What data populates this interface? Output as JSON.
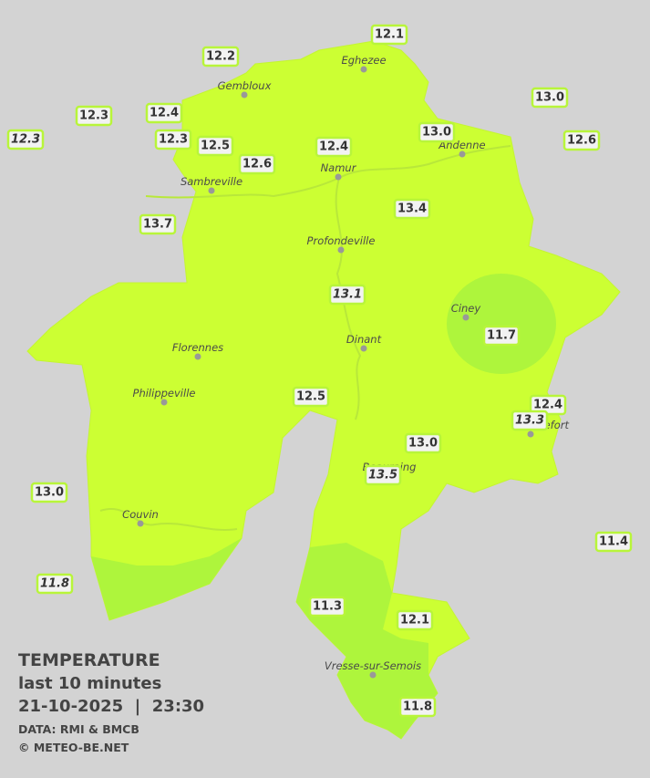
{
  "legend": {
    "title": "TEMPERATURE",
    "subtitle": "last 10 minutes",
    "datetime": "21-10-2025  |  23:30",
    "source": "DATA: RMI & BMCB",
    "credit": "© METEO-BE.NET"
  },
  "cities": [
    "Eghezee",
    "Gembloux",
    "Andenne",
    "Namur",
    "Sambreville",
    "Profondeville",
    "Ciney",
    "Dinant",
    "Florennes",
    "Philippeville",
    "Rochefort",
    "Beauraing",
    "Couvin",
    "Vresse-sur-Semois"
  ],
  "stations": [
    {
      "value": "12.1",
      "italic": false
    },
    {
      "value": "12.2",
      "italic": false
    },
    {
      "value": "13.0",
      "italic": false
    },
    {
      "value": "12.3",
      "italic": false
    },
    {
      "value": "12.4",
      "italic": false
    },
    {
      "value": "12.3",
      "italic": true
    },
    {
      "value": "12.3",
      "italic": false
    },
    {
      "value": "12.5",
      "italic": false
    },
    {
      "value": "13.0",
      "italic": false
    },
    {
      "value": "12.6",
      "italic": false
    },
    {
      "value": "12.4",
      "italic": false
    },
    {
      "value": "12.6",
      "italic": false
    },
    {
      "value": "13.4",
      "italic": false
    },
    {
      "value": "13.7",
      "italic": false
    },
    {
      "value": "13.1",
      "italic": true
    },
    {
      "value": "11.7",
      "italic": false
    },
    {
      "value": "12.5",
      "italic": false
    },
    {
      "value": "12.4",
      "italic": false
    },
    {
      "value": "13.3",
      "italic": true
    },
    {
      "value": "13.0",
      "italic": false
    },
    {
      "value": "13.5",
      "italic": true
    },
    {
      "value": "13.0",
      "italic": false
    },
    {
      "value": "11.4",
      "italic": false
    },
    {
      "value": "11.8",
      "italic": true
    },
    {
      "value": "11.3",
      "italic": false
    },
    {
      "value": "12.1",
      "italic": false
    },
    {
      "value": "11.8",
      "italic": false
    }
  ]
}
